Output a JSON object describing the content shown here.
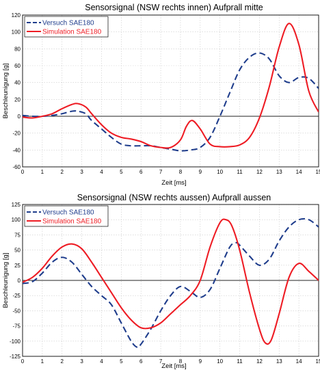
{
  "chart_data": [
    {
      "type": "line",
      "title": "Sensorsignal (NSW rechts innen) Aufprall mitte",
      "xlabel": "Zeit [ms]",
      "ylabel": "Beschleunigung [g]",
      "xlim": [
        0,
        15
      ],
      "ylim": [
        -60,
        120
      ],
      "xticks": [
        "0",
        "1",
        "2",
        "3",
        "4",
        "5",
        "6",
        "7",
        "8",
        "9",
        "10",
        "11",
        "12",
        "13",
        "14",
        "15"
      ],
      "yticks": [
        "-60",
        "-40",
        "-20",
        "0",
        "20",
        "40",
        "60",
        "80",
        "100",
        "120"
      ],
      "grid": true,
      "legend_position": "top-left",
      "series": [
        {
          "name": "Versuch SAE180",
          "color": "#1f3d8c",
          "style": "dashed",
          "x": [
            0,
            0.5,
            1,
            1.5,
            2,
            2.5,
            2.8,
            3.2,
            3.5,
            4,
            4.5,
            5,
            5.5,
            6,
            6.5,
            7,
            7.5,
            8,
            8.5,
            9,
            9.5,
            10,
            10.5,
            11,
            11.5,
            12,
            12.5,
            13,
            13.5,
            14,
            14.5,
            15
          ],
          "y": [
            1,
            0,
            0,
            1,
            3,
            6,
            6,
            3,
            -5,
            -15,
            -25,
            -33,
            -35,
            -35,
            -35,
            -37,
            -39,
            -41,
            -40,
            -37,
            -25,
            0,
            28,
            55,
            70,
            75,
            68,
            48,
            40,
            46,
            45,
            33
          ]
        },
        {
          "name": "Simulation SAE180",
          "color": "#ee1c24",
          "style": "solid",
          "x": [
            0,
            0.5,
            1,
            1.5,
            2,
            2.5,
            2.8,
            3.2,
            3.5,
            4,
            4.5,
            5,
            5.5,
            6,
            6.5,
            7,
            7.5,
            8,
            8.3,
            8.6,
            9,
            9.5,
            10,
            10.5,
            11,
            11.5,
            12,
            12.5,
            13,
            13.5,
            14,
            14.5,
            15
          ],
          "y": [
            -1,
            -2,
            0,
            3,
            9,
            14,
            15,
            11,
            3,
            -10,
            -20,
            -25,
            -27,
            -30,
            -35,
            -37,
            -37,
            -28,
            -12,
            -5,
            -15,
            -33,
            -36,
            -36,
            -34,
            -25,
            -2,
            35,
            82,
            110,
            85,
            30,
            5
          ]
        }
      ]
    },
    {
      "type": "line",
      "title": "Sensorsignal (NSW rechts aussen) Aufprall aussen",
      "xlabel": "Zeit [ms]",
      "ylabel": "Beschleunigung [g]",
      "xlim": [
        0,
        15
      ],
      "ylim": [
        -125,
        125
      ],
      "xticks": [
        "0",
        "1",
        "2",
        "3",
        "4",
        "5",
        "6",
        "7",
        "8",
        "9",
        "10",
        "11",
        "12",
        "13",
        "14",
        "15"
      ],
      "yticks": [
        "-125",
        "-100",
        "-75",
        "-50",
        "-25",
        "0",
        "25",
        "50",
        "75",
        "100",
        "125"
      ],
      "grid": true,
      "legend_position": "top-left",
      "series": [
        {
          "name": "Versuch SAE180",
          "color": "#1f3d8c",
          "style": "dashed",
          "x": [
            0,
            0.5,
            1,
            1.5,
            2,
            2.5,
            3,
            3.5,
            4,
            4.5,
            5,
            5.5,
            5.8,
            6,
            6.5,
            7,
            7.5,
            8,
            8.5,
            9,
            9.5,
            10,
            10.5,
            10.8,
            11,
            11.5,
            12,
            12.5,
            13,
            13.5,
            14,
            14.5,
            15
          ],
          "y": [
            -5,
            -2,
            12,
            30,
            38,
            30,
            10,
            -10,
            -25,
            -40,
            -70,
            -100,
            -110,
            -105,
            -80,
            -50,
            -25,
            -10,
            -18,
            -28,
            -15,
            20,
            55,
            62,
            58,
            40,
            25,
            35,
            65,
            88,
            100,
            100,
            88
          ]
        },
        {
          "name": "Simulation SAE180",
          "color": "#ee1c24",
          "style": "solid",
          "x": [
            0,
            0.5,
            1,
            1.5,
            2,
            2.5,
            3,
            3.5,
            4,
            4.5,
            5,
            5.5,
            6,
            6.5,
            7,
            7.5,
            8,
            8.5,
            9,
            9.5,
            10,
            10.3,
            10.6,
            11,
            11.5,
            12,
            12.3,
            12.6,
            13,
            13.5,
            14,
            14.5,
            15
          ],
          "y": [
            -3,
            5,
            20,
            40,
            55,
            60,
            52,
            30,
            5,
            -20,
            -45,
            -65,
            -78,
            -78,
            -70,
            -55,
            -40,
            -25,
            0,
            55,
            95,
            100,
            90,
            50,
            -20,
            -80,
            -103,
            -98,
            -55,
            5,
            28,
            15,
            0
          ]
        }
      ]
    }
  ]
}
